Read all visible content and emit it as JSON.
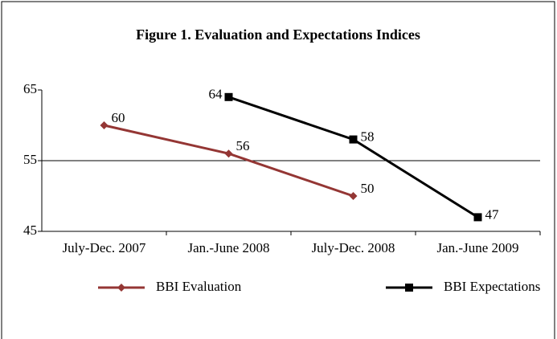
{
  "chart_data": {
    "type": "line",
    "title": "Figure 1. Evaluation and Expectations Indices",
    "categories": [
      "July-Dec. 2007",
      "Jan.-June 2008",
      "July-Dec. 2008",
      "Jan.-June 2009"
    ],
    "series": [
      {
        "name": "BBI Evaluation",
        "color": "#943634",
        "marker": "diamond",
        "values": [
          60,
          56,
          50,
          null
        ]
      },
      {
        "name": "BBI Expectations",
        "color": "#000000",
        "marker": "square",
        "values": [
          null,
          64,
          58,
          47
        ]
      }
    ],
    "ylim": [
      45,
      65
    ],
    "yticks": [
      45,
      55,
      65
    ],
    "grid": true,
    "legend": "bottom"
  }
}
